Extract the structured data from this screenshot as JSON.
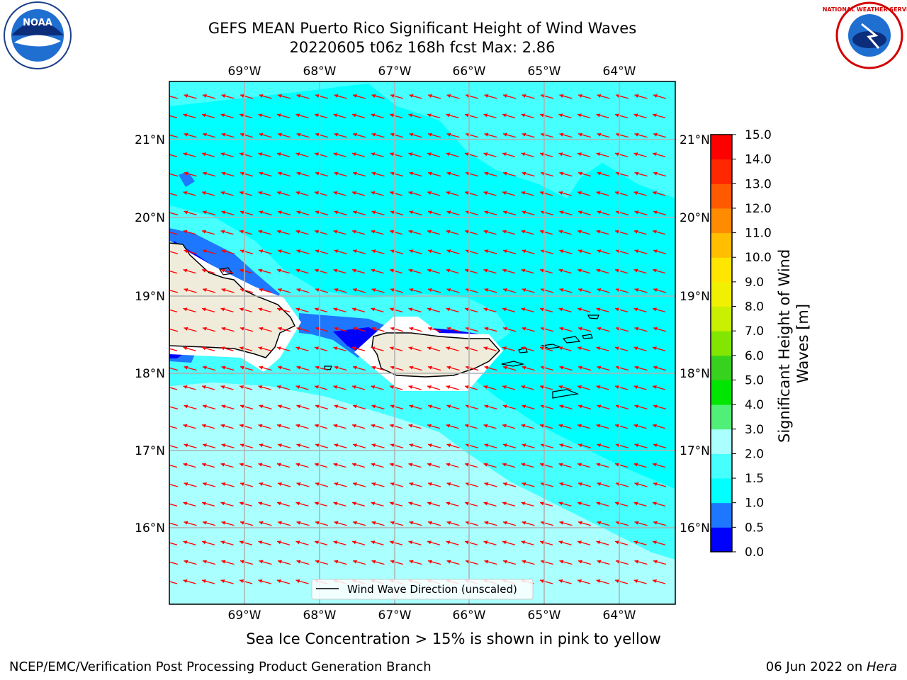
{
  "title": "GEFS MEAN Puerto Rico Significant Height of Wind Waves",
  "subtitle": "20220605 t06z 168h fcst   Max: 2.86",
  "logos": {
    "left": "NOAA",
    "right": "NATIONAL WEATHER SERVICE"
  },
  "lon_labels": [
    "69°W",
    "68°W",
    "67°W",
    "66°W",
    "65°W",
    "64°W"
  ],
  "lat_labels": [
    "21°N",
    "20°N",
    "19°N",
    "18°N",
    "17°N",
    "16°N"
  ],
  "colorbar": {
    "label": "Significant Height of Wind Waves [m]",
    "ticks": [
      "0.0",
      "0.5",
      "1.0",
      "1.5",
      "2.0",
      "3.0",
      "4.0",
      "5.0",
      "6.0",
      "7.0",
      "8.0",
      "9.0",
      "10.0",
      "11.0",
      "12.0",
      "13.0",
      "14.0",
      "15.0"
    ],
    "colors": [
      "#0000ff",
      "#1e78ff",
      "#00ffff",
      "#46ffff",
      "#aaffff",
      "#50f078",
      "#00e600",
      "#37d21e",
      "#82e600",
      "#c8f000",
      "#f0f000",
      "#ffe600",
      "#ffbe00",
      "#ff8c00",
      "#ff5a00",
      "#ff2800",
      "#ff0000"
    ]
  },
  "legend_label": "Wind Wave Direction (unscaled)",
  "sea_ice_note": "Sea Ice Concentration > 15% is shown in pink to yellow",
  "footer_left": "NCEP/EMC/Verification Post Processing Product Generation Branch",
  "footer_date": "06 Jun 2022 on ",
  "footer_host": "Hera",
  "colors": {
    "arrow": "#ff0000",
    "land": "#efecdc",
    "grid": "#b0b0b0"
  }
}
